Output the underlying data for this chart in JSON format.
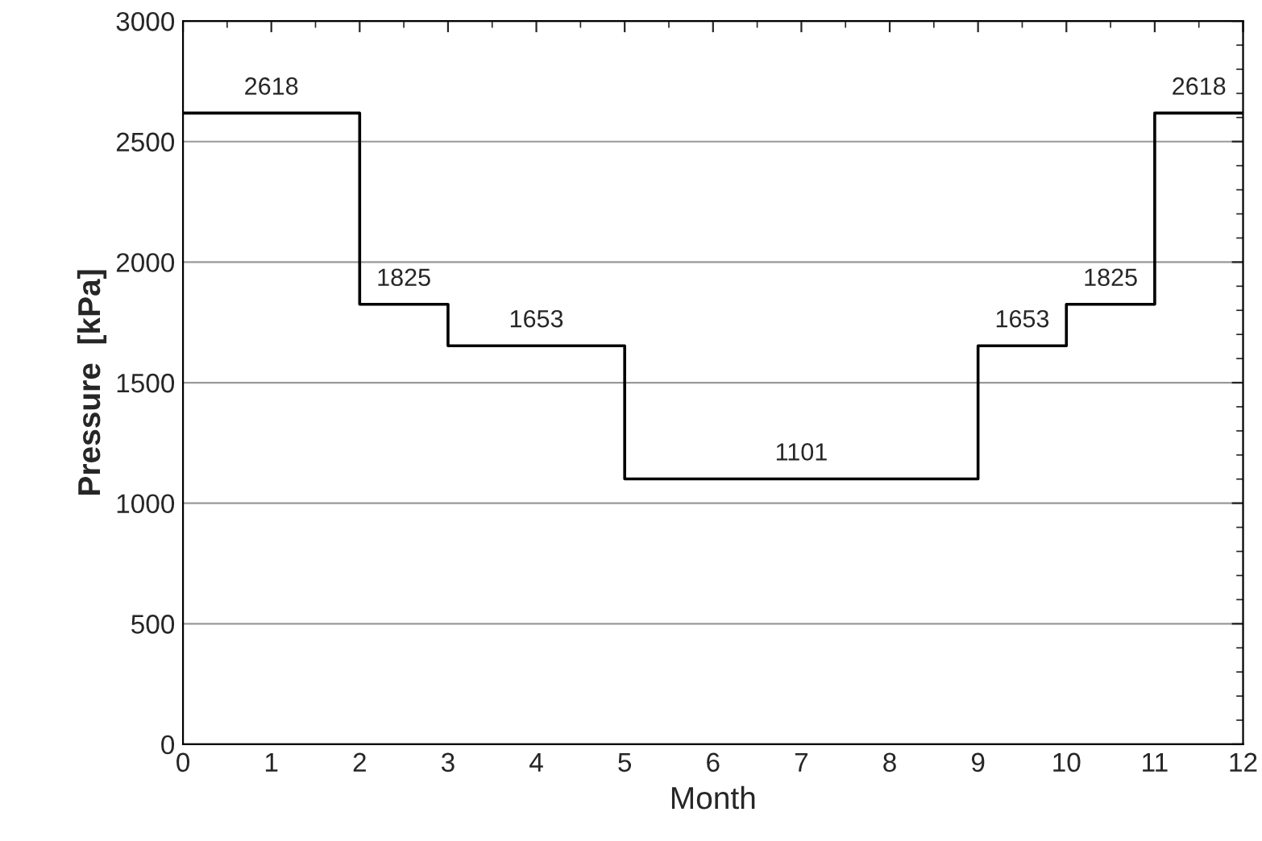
{
  "chart_data": {
    "type": "step",
    "xlabel": "Month",
    "ylabel": "Pressure  [kPa]",
    "x": [
      0,
      2,
      3,
      5,
      9,
      10,
      11,
      12
    ],
    "series": [
      {
        "color": "#000000",
        "values": [
          2618,
          1825,
          1653,
          1101,
          1653,
          1825,
          2618,
          2618
        ]
      }
    ],
    "annotations": [
      {
        "text": "2618",
        "x": 1,
        "y": 2618
      },
      {
        "text": "1825",
        "x": 2.5,
        "y": 1825
      },
      {
        "text": "1653",
        "x": 4,
        "y": 1653
      },
      {
        "text": "1101",
        "x": 7,
        "y": 1101
      },
      {
        "text": "1653",
        "x": 9.5,
        "y": 1653
      },
      {
        "text": "1825",
        "x": 10.5,
        "y": 1825
      },
      {
        "text": "2618",
        "x": 11.5,
        "y": 2618
      }
    ],
    "xlim": [
      0,
      12
    ],
    "xticks": [
      0,
      1,
      2,
      3,
      4,
      5,
      6,
      7,
      8,
      9,
      10,
      11,
      12
    ],
    "ylim": [
      0,
      3000
    ],
    "yticks": [
      0,
      500,
      1000,
      1500,
      2000,
      2500,
      3000
    ],
    "grid": "y",
    "marker": "none",
    "line_style": "solid"
  }
}
